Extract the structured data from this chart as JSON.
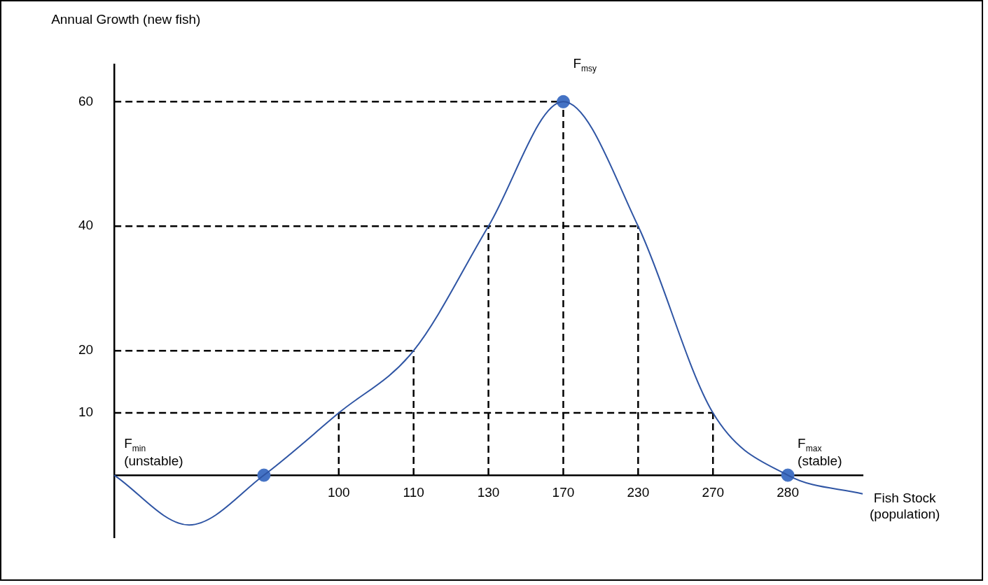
{
  "chart_data": {
    "type": "line",
    "xlabel": "Fish Stock\n(population)",
    "ylabel": "Annual Growth (new fish)",
    "categories": [
      null,
      null,
      null,
      "100",
      "110",
      "130",
      "170",
      "230",
      "270",
      "280",
      null
    ],
    "series": [
      {
        "color": "#2f55a4",
        "values": [
          0,
          -8,
          0,
          10,
          20,
          40,
          60,
          40,
          10,
          0,
          -3
        ]
      },
      {
        "type": "scatter",
        "color": "#4472c4",
        "marker": "circle",
        "values": [
          null,
          null,
          0,
          null,
          null,
          null,
          60,
          null,
          null,
          0,
          null
        ]
      }
    ],
    "ylim": [
      -10,
      66
    ],
    "yticks": [
      10,
      20,
      40,
      60
    ],
    "grid": false,
    "legend": false,
    "marker": "none",
    "line_style": "solid",
    "ref_lines": [
      {
        "axis": "y",
        "value": 10,
        "color": "#000000",
        "line_style": "dashed"
      },
      {
        "axis": "y",
        "value": 20,
        "color": "#000000",
        "line_style": "dashed"
      },
      {
        "axis": "y",
        "value": 40,
        "color": "#000000",
        "line_style": "dashed"
      },
      {
        "axis": "y",
        "value": 60,
        "color": "#000000",
        "line_style": "dashed"
      },
      {
        "axis": "x",
        "value": "100",
        "color": "#000000",
        "line_style": "dashed"
      },
      {
        "axis": "x",
        "value": "110",
        "color": "#000000",
        "line_style": "dashed"
      },
      {
        "axis": "x",
        "value": "130",
        "color": "#000000",
        "line_style": "dashed"
      },
      {
        "axis": "x",
        "value": "170",
        "color": "#000000",
        "line_style": "dashed"
      },
      {
        "axis": "x",
        "value": "230",
        "color": "#000000",
        "line_style": "dashed"
      },
      {
        "axis": "x",
        "value": "270",
        "color": "#000000",
        "line_style": "dashed"
      }
    ],
    "annotations": [
      "F$_{min}$\n(unstable)",
      {
        "text": "F$_{msy}$",
        "x": "170",
        "y": 60
      },
      {
        "text": "F$_{max}$\n(stable)",
        "x": "280",
        "y": 0
      }
    ]
  }
}
